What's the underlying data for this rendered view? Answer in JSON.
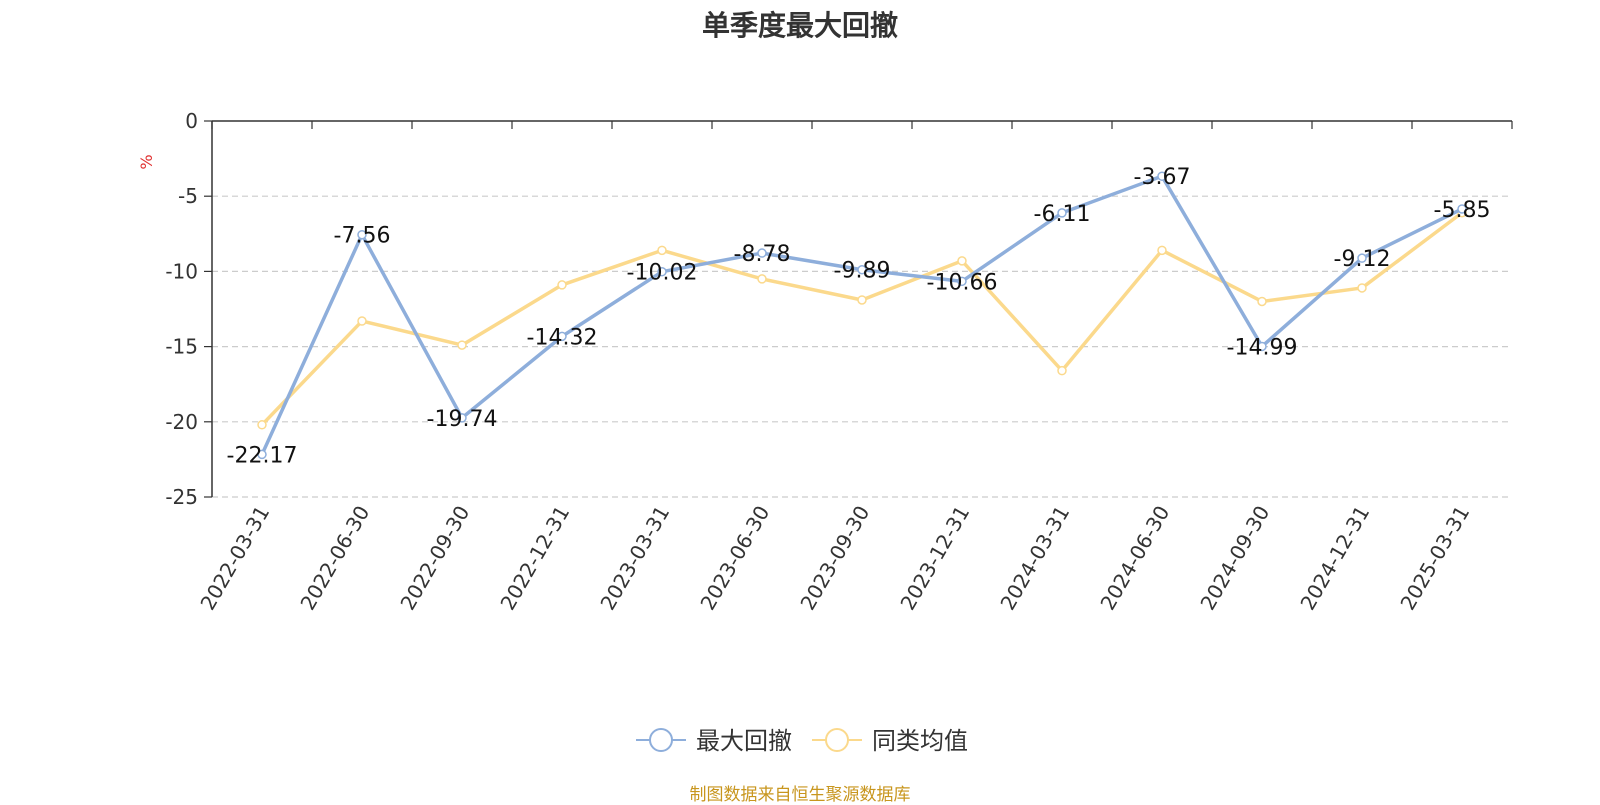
{
  "chart_data": {
    "type": "line",
    "title": "单季度最大回撤",
    "ylabel": "%",
    "xlabel": "",
    "categories": [
      "2022-03-31",
      "2022-06-30",
      "2022-09-30",
      "2022-12-31",
      "2023-03-31",
      "2023-06-30",
      "2023-09-30",
      "2023-12-31",
      "2024-03-31",
      "2024-06-30",
      "2024-09-30",
      "2024-12-31",
      "2025-03-31"
    ],
    "ylim": [
      -25,
      0
    ],
    "yticks": [
      0,
      -5,
      -10,
      -15,
      -20,
      -25
    ],
    "grid": "horizontal-dashed",
    "legend_position": "bottom-center",
    "series": [
      {
        "name": "最大回撤",
        "color": "#8eaedb",
        "show_labels": true,
        "values": [
          -22.17,
          -7.56,
          -19.74,
          -14.32,
          -10.02,
          -8.78,
          -9.89,
          -10.66,
          -6.11,
          -3.67,
          -14.99,
          -9.12,
          -5.85
        ]
      },
      {
        "name": "同类均值",
        "color": "#fbd98c",
        "show_labels": false,
        "values": [
          -20.2,
          -13.3,
          -14.9,
          -10.9,
          -8.6,
          -10.5,
          -11.9,
          -9.3,
          -16.6,
          -8.6,
          -12.0,
          -11.1,
          -6.1
        ]
      }
    ]
  },
  "footer": {
    "source": "制图数据来自恒生聚源数据库"
  }
}
